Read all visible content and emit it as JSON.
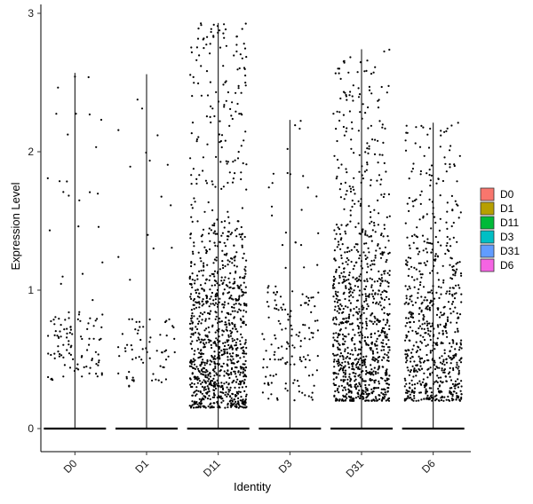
{
  "chart_data": {
    "type": "violin-jitter",
    "title": "",
    "xlabel": "Identity",
    "ylabel": "Expression Level",
    "ylim": [
      -0.15,
      3.05
    ],
    "yticks": [
      0,
      1,
      2,
      3
    ],
    "grid": false,
    "legend_position": "right",
    "categories": [
      "D0",
      "D1",
      "D11",
      "D3",
      "D31",
      "D6"
    ],
    "groups": [
      {
        "name": "D0",
        "color": "#F8766D",
        "max": 2.57,
        "jitter_points": 120,
        "dense_band": [
          0.35,
          0.85
        ]
      },
      {
        "name": "D1",
        "color": "#B79F00",
        "max": 2.56,
        "jitter_points": 80,
        "dense_band": [
          0.3,
          0.8
        ]
      },
      {
        "name": "D11",
        "color": "#00BA38",
        "max": 2.93,
        "jitter_points": 1100,
        "dense_band": [
          0.15,
          1.5
        ]
      },
      {
        "name": "D3",
        "color": "#00BFC4",
        "max": 2.23,
        "jitter_points": 160,
        "dense_band": [
          0.2,
          1.0
        ]
      },
      {
        "name": "D31",
        "color": "#619CFF",
        "max": 2.74,
        "jitter_points": 1000,
        "dense_band": [
          0.2,
          1.5
        ]
      },
      {
        "name": "D6",
        "color": "#F564E3",
        "max": 2.21,
        "jitter_points": 700,
        "dense_band": [
          0.2,
          1.4
        ]
      }
    ]
  },
  "legend": {
    "items": [
      {
        "label": "D0",
        "color": "#F8766D"
      },
      {
        "label": "D1",
        "color": "#B79F00"
      },
      {
        "label": "D11",
        "color": "#00BA38"
      },
      {
        "label": "D3",
        "color": "#00BFC4"
      },
      {
        "label": "D31",
        "color": "#619CFF"
      },
      {
        "label": "D6",
        "color": "#F564E3"
      }
    ]
  }
}
